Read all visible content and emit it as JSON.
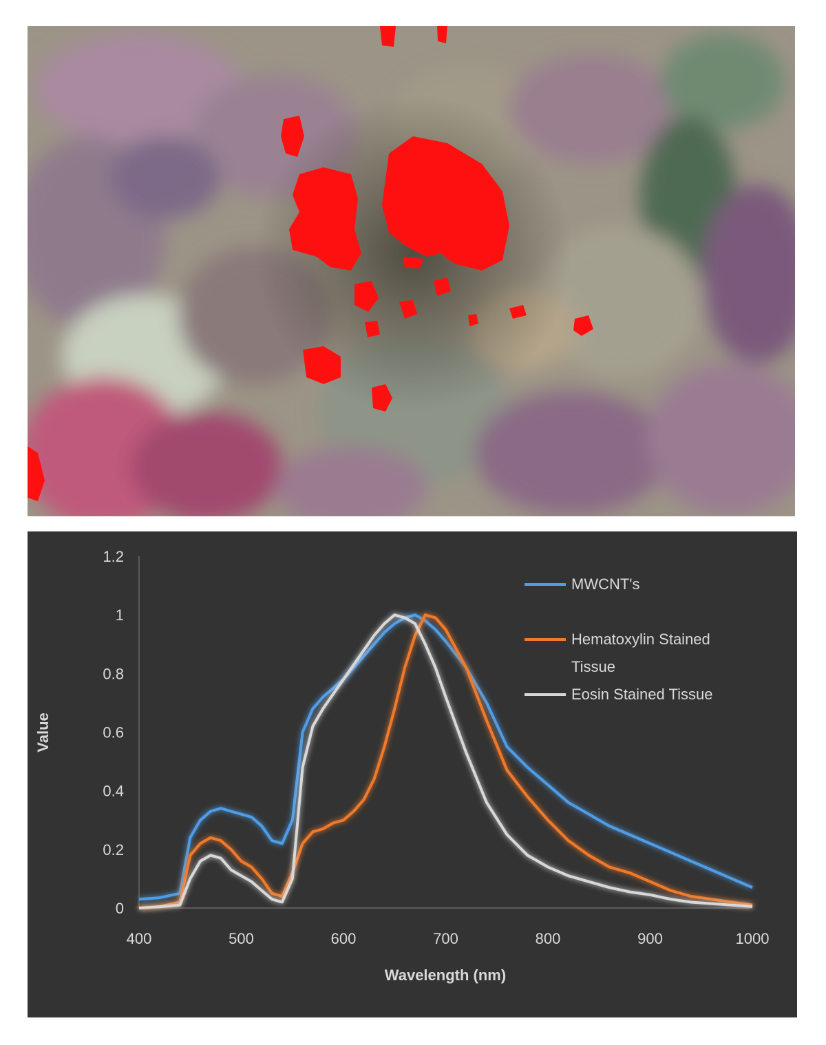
{
  "micrograph": {
    "description_icon": "tissue-micrograph-with-red-mwcnt-overlay",
    "colors": {
      "overlay": "#ff1a1a",
      "tissue_pink": "#b98aa0",
      "tissue_purple": "#7d5a8a",
      "tissue_green": "#8fa38e"
    }
  },
  "chart_data": {
    "type": "line",
    "title": "",
    "xlabel": "Wavelength (nm)",
    "ylabel": "Value",
    "xlim": [
      400,
      1000
    ],
    "ylim": [
      0,
      1.2
    ],
    "x_ticks": [
      "400",
      "500",
      "600",
      "700",
      "800",
      "900",
      "1000"
    ],
    "y_ticks": [
      "0",
      "0.2",
      "0.4",
      "0.6",
      "0.8",
      "1",
      "1.2"
    ],
    "grid": false,
    "legend_position": "top-right",
    "series": [
      {
        "name": "MWCNT's",
        "color": "#4f9de6",
        "x": [
          400,
          420,
          440,
          450,
          460,
          470,
          480,
          490,
          500,
          510,
          520,
          530,
          540,
          550,
          560,
          570,
          580,
          590,
          600,
          610,
          620,
          630,
          640,
          650,
          660,
          670,
          680,
          690,
          700,
          720,
          740,
          760,
          780,
          800,
          820,
          840,
          860,
          880,
          900,
          920,
          940,
          960,
          980,
          1000
        ],
        "y": [
          0.03,
          0.035,
          0.05,
          0.24,
          0.3,
          0.33,
          0.34,
          0.33,
          0.32,
          0.31,
          0.28,
          0.23,
          0.22,
          0.3,
          0.6,
          0.68,
          0.72,
          0.75,
          0.78,
          0.82,
          0.86,
          0.9,
          0.94,
          0.97,
          0.99,
          1.0,
          0.98,
          0.95,
          0.91,
          0.82,
          0.7,
          0.55,
          0.48,
          0.42,
          0.36,
          0.32,
          0.28,
          0.25,
          0.22,
          0.19,
          0.16,
          0.13,
          0.1,
          0.07
        ]
      },
      {
        "name": "Hematoxylin Stained Tissue",
        "color": "#f07a2a",
        "x": [
          400,
          420,
          440,
          450,
          460,
          470,
          480,
          490,
          500,
          510,
          520,
          530,
          540,
          550,
          560,
          570,
          580,
          590,
          600,
          610,
          620,
          630,
          640,
          650,
          660,
          670,
          680,
          690,
          700,
          720,
          740,
          760,
          780,
          800,
          820,
          840,
          860,
          880,
          900,
          920,
          940,
          960,
          980,
          1000
        ],
        "y": [
          0.0,
          0.005,
          0.02,
          0.18,
          0.22,
          0.24,
          0.23,
          0.2,
          0.16,
          0.14,
          0.1,
          0.05,
          0.04,
          0.12,
          0.22,
          0.26,
          0.27,
          0.29,
          0.3,
          0.33,
          0.37,
          0.44,
          0.55,
          0.68,
          0.82,
          0.93,
          1.0,
          0.99,
          0.95,
          0.82,
          0.64,
          0.47,
          0.38,
          0.3,
          0.23,
          0.18,
          0.14,
          0.12,
          0.09,
          0.06,
          0.04,
          0.03,
          0.02,
          0.01
        ]
      },
      {
        "name": "Eosin Stained Tissue",
        "color": "#d8d8d8",
        "x": [
          400,
          420,
          440,
          450,
          460,
          470,
          480,
          490,
          500,
          510,
          520,
          530,
          540,
          550,
          560,
          570,
          580,
          590,
          600,
          610,
          620,
          630,
          640,
          650,
          660,
          670,
          680,
          690,
          700,
          720,
          740,
          760,
          780,
          800,
          820,
          840,
          860,
          880,
          900,
          920,
          940,
          960,
          980,
          1000
        ],
        "y": [
          0.0,
          0.004,
          0.01,
          0.1,
          0.16,
          0.18,
          0.17,
          0.13,
          0.11,
          0.09,
          0.06,
          0.03,
          0.02,
          0.1,
          0.48,
          0.62,
          0.68,
          0.73,
          0.78,
          0.83,
          0.88,
          0.93,
          0.97,
          1.0,
          0.99,
          0.97,
          0.9,
          0.82,
          0.72,
          0.53,
          0.36,
          0.25,
          0.18,
          0.14,
          0.11,
          0.09,
          0.07,
          0.055,
          0.045,
          0.03,
          0.02,
          0.015,
          0.01,
          0.005
        ]
      }
    ],
    "legend": [
      {
        "lines": [
          "MWCNT's"
        ],
        "color": "#4f9de6"
      },
      {
        "lines": [
          "Hematoxylin Stained",
          "Tissue"
        ],
        "color": "#f07a2a"
      },
      {
        "lines": [
          "Eosin Stained Tissue"
        ],
        "color": "#d8d8d8"
      }
    ]
  }
}
